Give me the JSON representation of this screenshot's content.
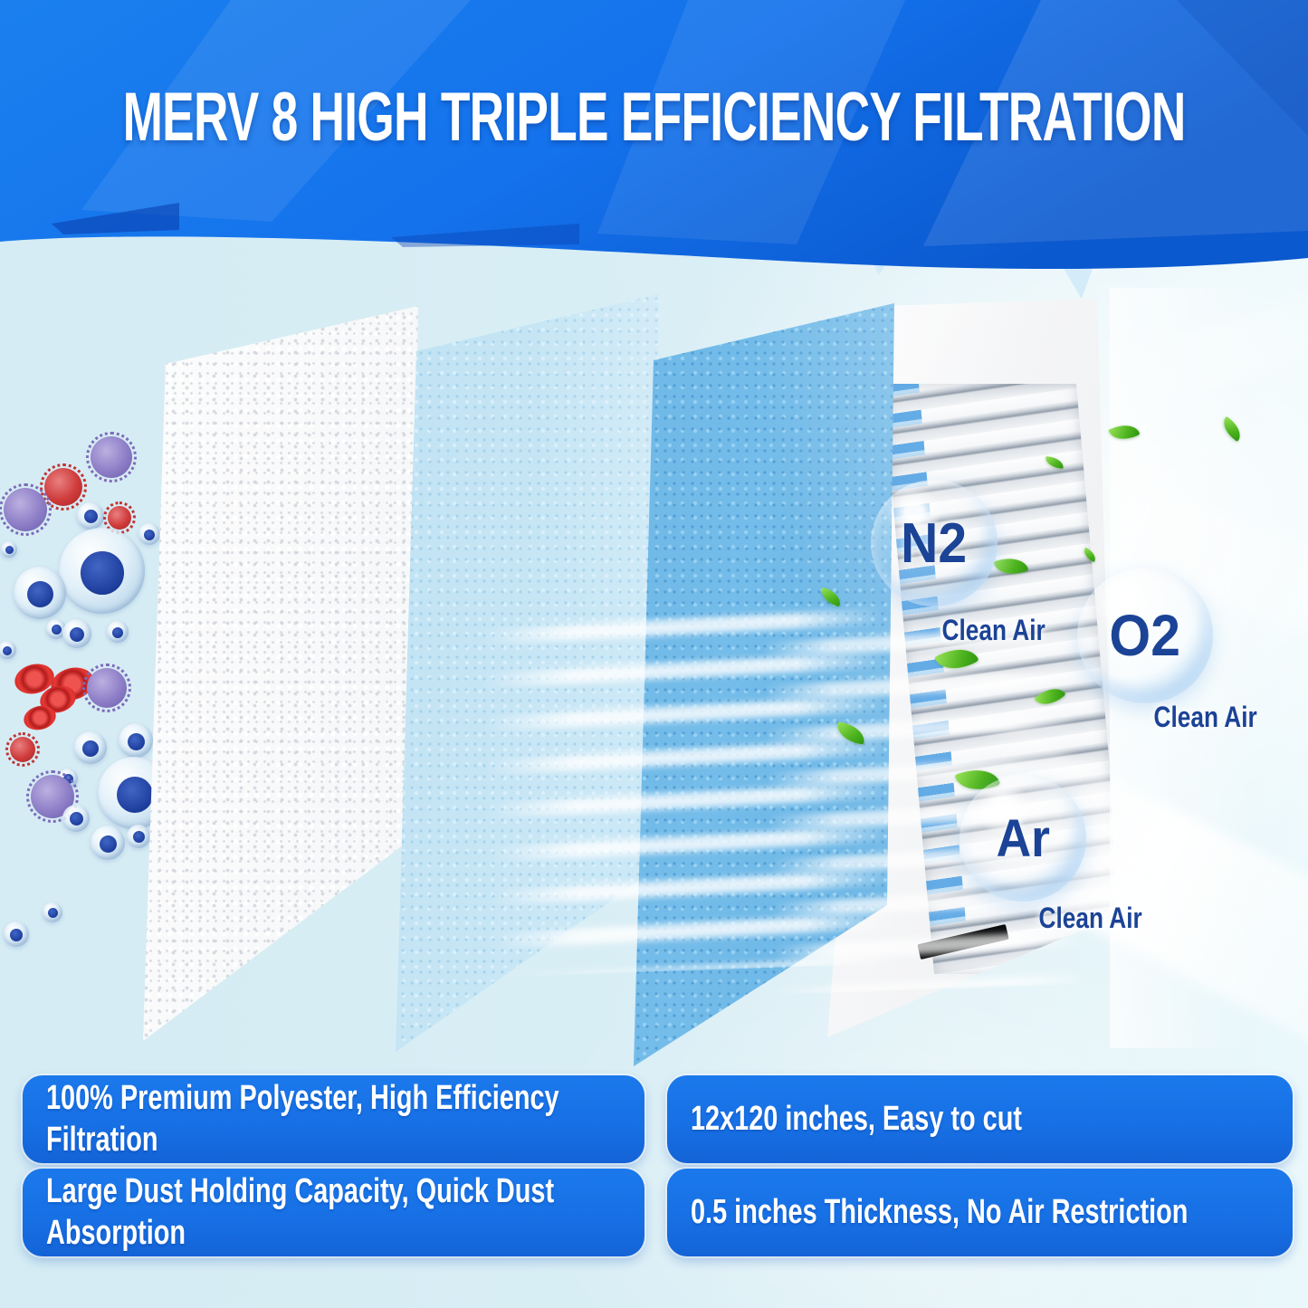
{
  "title": "MERV 8 HIGH TRIPLE EFFICIENCY FILTRATION",
  "gas_bubbles": [
    {
      "symbol": "N2",
      "label": "Clean Air"
    },
    {
      "symbol": "O2",
      "label": "Clean Air"
    },
    {
      "symbol": "Ar",
      "label": "Clean Air"
    }
  ],
  "features": {
    "top_left": "100% Premium Polyester, High Efficiency\nFiltration",
    "top_right": "12x120 inches, Easy to cut",
    "bottom_left": "Large Dust Holding Capacity, Quick Dust\nAbsorption",
    "bottom_right": "0.5 inches Thickness, No Air Restriction"
  },
  "colors": {
    "header_blue": "#1472ec",
    "header_blue_dark": "#0b59cf",
    "feature_box_blue": "#176fe4",
    "gas_text_navy": "#1b4396",
    "leaf_green": "#4db31e",
    "background": "#d9edf4"
  },
  "icons": {
    "leaf_icon": "css-leaf-teardrop-green",
    "bubble_icon": "css-transparent-sphere",
    "virus_icon": "css-spiky-circle",
    "cell_icon": "css-translucent-sphere-with-nucleus",
    "red_blood_cell_icon": "css-red-torus-ellipse",
    "vent_grille": "css-louvered-white-panel",
    "filter_layer": "css-speckled-parallelogram",
    "air_beam": "css-white-gradient-ray"
  }
}
